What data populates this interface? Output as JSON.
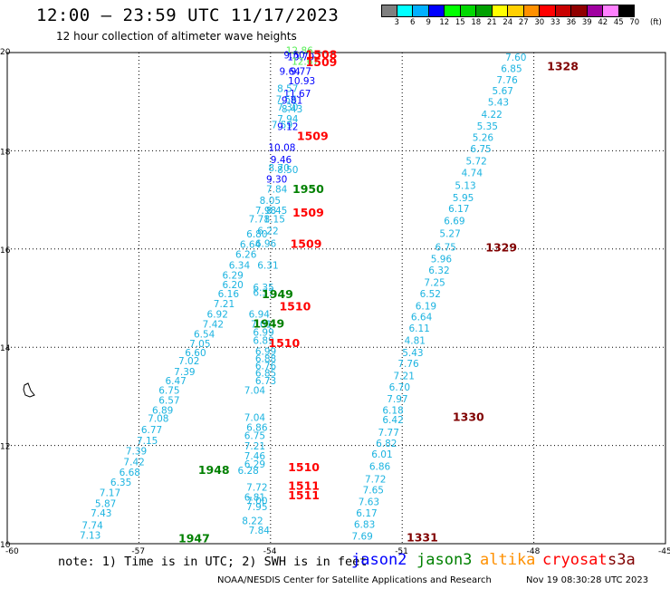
{
  "title": "12:00 – 23:59 UTC 11/17/2023",
  "subtitle": "12 hour collection of altimeter wave heights",
  "scale": {
    "unit": "(ft)",
    "bins": [
      {
        "label": "3",
        "color": "#7f7f7f"
      },
      {
        "label": "6",
        "color": "#00ffff"
      },
      {
        "label": "9",
        "color": "#00b0ff"
      },
      {
        "label": "12",
        "color": "#0000ff"
      },
      {
        "label": "15",
        "color": "#00ff00"
      },
      {
        "label": "18",
        "color": "#00d800"
      },
      {
        "label": "21",
        "color": "#00a000"
      },
      {
        "label": "24",
        "color": "#ffff00"
      },
      {
        "label": "27",
        "color": "#ffd000"
      },
      {
        "label": "30",
        "color": "#ff9000"
      },
      {
        "label": "33",
        "color": "#ff0000"
      },
      {
        "label": "36",
        "color": "#c80000"
      },
      {
        "label": "39",
        "color": "#900000"
      },
      {
        "label": "42",
        "color": "#a000a0"
      },
      {
        "label": "45",
        "color": "#ff80ff"
      },
      {
        "label": "70",
        "color": "#000000"
      }
    ]
  },
  "axes": {
    "x_ticks": [
      "-60",
      "-57",
      "-54",
      "-51",
      "-48",
      "-45"
    ],
    "y_ticks": [
      "20",
      "18",
      "16",
      "14",
      "12",
      "10"
    ]
  },
  "time_labels": [
    {
      "text": "1509",
      "color": "#ff0000",
      "lon": -53.2,
      "lat": 19.72
    },
    {
      "text": "1508",
      "color": "#ff0000",
      "lon": -53.2,
      "lat": 19.88
    },
    {
      "text": "1509",
      "color": "#ff0000",
      "lon": -53.4,
      "lat": 18.22
    },
    {
      "text": "1950",
      "color": "#008000",
      "lon": -53.5,
      "lat": 17.14
    },
    {
      "text": "1509",
      "color": "#ff0000",
      "lon": -53.5,
      "lat": 16.66
    },
    {
      "text": "1509",
      "color": "#ff0000",
      "lon": -53.55,
      "lat": 16.02
    },
    {
      "text": "1329",
      "color": "#800000",
      "lon": -49.1,
      "lat": 15.95
    },
    {
      "text": "1949",
      "color": "#008000",
      "lon": -54.2,
      "lat": 15.0
    },
    {
      "text": "1510",
      "color": "#ff0000",
      "lon": -53.8,
      "lat": 14.75
    },
    {
      "text": "1949",
      "color": "#008000",
      "lon": -54.4,
      "lat": 14.4
    },
    {
      "text": "1510",
      "color": "#ff0000",
      "lon": -54.05,
      "lat": 14.0
    },
    {
      "text": "1330",
      "color": "#800000",
      "lon": -49.85,
      "lat": 12.5
    },
    {
      "text": "1948",
      "color": "#008000",
      "lon": -55.65,
      "lat": 11.42
    },
    {
      "text": "1510",
      "color": "#ff0000",
      "lon": -53.6,
      "lat": 11.48
    },
    {
      "text": "1511",
      "color": "#ff0000",
      "lon": -53.6,
      "lat": 11.1
    },
    {
      "text": "1511",
      "color": "#ff0000",
      "lon": -53.6,
      "lat": 10.9
    },
    {
      "text": "1947",
      "color": "#008000",
      "lon": -56.1,
      "lat": 10.03
    },
    {
      "text": "1331",
      "color": "#800000",
      "lon": -50.9,
      "lat": 10.05
    },
    {
      "text": "1328",
      "color": "#800000",
      "lon": -47.7,
      "lat": 19.64
    }
  ],
  "tracks": [
    {
      "name": "",
      "values": [
        "12.86",
        "9.50",
        "10.79",
        "12.67",
        "9.64",
        "9.77",
        "10.93",
        "8.57",
        "11.67",
        "7.56",
        "9.81",
        "7.30",
        "8.43",
        "7.94",
        "7.59",
        "9.12",
        "10.08",
        "9.46",
        "8.70",
        "8.50",
        "9.30",
        "7.84",
        "8.05",
        "7.98",
        "8.45",
        "7.71",
        "8.15",
        "6.80",
        "6.22",
        "6.64",
        "6.96",
        "6.26"
      ],
      "points": [
        [
          -53.65,
          19.97
        ],
        [
          -53.7,
          19.88
        ],
        [
          -53.62,
          19.84
        ],
        [
          -53.52,
          19.75
        ],
        [
          -53.8,
          19.55
        ],
        [
          -53.55,
          19.55
        ],
        [
          -53.6,
          19.35
        ],
        [
          -53.85,
          19.2
        ],
        [
          -53.7,
          19.1
        ],
        [
          -53.88,
          18.98
        ],
        [
          -53.75,
          18.96
        ],
        [
          -53.85,
          18.82
        ],
        [
          -53.75,
          18.78
        ],
        [
          -53.85,
          18.58
        ],
        [
          -53.98,
          18.46
        ],
        [
          -53.85,
          18.42
        ],
        [
          -54.05,
          18.0
        ],
        [
          -54.0,
          17.75
        ],
        [
          -54.05,
          17.58
        ],
        [
          -53.85,
          17.55
        ],
        [
          -54.1,
          17.35
        ],
        [
          -54.1,
          17.15
        ],
        [
          -54.25,
          16.92
        ],
        [
          -54.35,
          16.72
        ],
        [
          -54.1,
          16.72
        ],
        [
          -54.5,
          16.54
        ],
        [
          -54.15,
          16.54
        ],
        [
          -54.55,
          16.24
        ],
        [
          -54.3,
          16.3
        ],
        [
          -54.7,
          16.02
        ],
        [
          -54.35,
          16.04
        ],
        [
          -54.8,
          15.82
        ]
      ]
    },
    {
      "name": "",
      "values": [
        "6.34",
        "6.31",
        "6.29",
        "6.20",
        "6.35",
        "6.16",
        "6.37",
        "7.21",
        "6.92",
        "6.94",
        "7.42",
        "7.01",
        "6.54",
        "6.99",
        "7.05",
        "6.89",
        "6.60",
        "6.99",
        "7.02",
        "6.88",
        "6.76",
        "7.39",
        "6.85",
        "6.47",
        "6.73",
        "6.75",
        "7.04",
        "6.57",
        "6.89",
        "7.04",
        "7.08",
        "6.86",
        "6.77",
        "6.75",
        "7.15",
        "7.21",
        "7.39",
        "7.46",
        "7.42",
        "6.29",
        "6.28",
        "6.68",
        "6.35",
        "7.72",
        "7.17",
        "6.81",
        "5.87",
        "7.00",
        "7.95",
        "7.43",
        "8.22",
        "7.74",
        "7.84",
        "7.13"
      ],
      "points": [
        [
          -54.95,
          15.6
        ],
        [
          -54.3,
          15.6
        ],
        [
          -55.1,
          15.4
        ],
        [
          -55.1,
          15.2
        ],
        [
          -54.4,
          15.15
        ],
        [
          -55.2,
          15.02
        ],
        [
          -54.4,
          15.05
        ],
        [
          -55.3,
          14.82
        ],
        [
          -55.45,
          14.6
        ],
        [
          -54.5,
          14.6
        ],
        [
          -55.55,
          14.4
        ],
        [
          -54.45,
          14.4
        ],
        [
          -55.75,
          14.2
        ],
        [
          -54.4,
          14.23
        ],
        [
          -55.85,
          14.0
        ],
        [
          -54.4,
          14.07
        ],
        [
          -55.95,
          13.82
        ],
        [
          -54.35,
          13.85
        ],
        [
          -56.1,
          13.65
        ],
        [
          -54.35,
          13.7
        ],
        [
          -54.35,
          13.55
        ],
        [
          -56.2,
          13.43
        ],
        [
          -54.35,
          13.4
        ],
        [
          -56.4,
          13.25
        ],
        [
          -54.35,
          13.25
        ],
        [
          -56.55,
          13.05
        ],
        [
          -54.6,
          13.05
        ],
        [
          -56.55,
          12.85
        ],
        [
          -56.7,
          12.65
        ],
        [
          -54.6,
          12.5
        ],
        [
          -56.8,
          12.48
        ],
        [
          -54.55,
          12.3
        ],
        [
          -56.95,
          12.25
        ],
        [
          -54.6,
          12.13
        ],
        [
          -57.05,
          12.03
        ],
        [
          -54.6,
          11.92
        ],
        [
          -57.3,
          11.82
        ],
        [
          -54.6,
          11.72
        ],
        [
          -57.35,
          11.6
        ],
        [
          -54.6,
          11.55
        ],
        [
          -54.75,
          11.42
        ],
        [
          -57.45,
          11.38
        ],
        [
          -57.65,
          11.18
        ],
        [
          -54.55,
          11.08
        ],
        [
          -57.9,
          10.97
        ],
        [
          -54.6,
          10.88
        ],
        [
          -58.0,
          10.75
        ],
        [
          -54.55,
          10.8
        ],
        [
          -54.55,
          10.68
        ],
        [
          -58.1,
          10.55
        ],
        [
          -54.65,
          10.4
        ],
        [
          -58.3,
          10.3
        ],
        [
          -54.5,
          10.2
        ],
        [
          -58.35,
          10.1
        ]
      ]
    },
    {
      "name": "",
      "values": [
        "7.60",
        "6.85",
        "7.76",
        "5.67",
        "5.43",
        "4.22",
        "5.35",
        "5.26",
        "6.75",
        "5.72",
        "4.74",
        "5.13",
        "5.95",
        "6.17",
        "6.69",
        "5.27",
        "6.75",
        "5.96",
        "6.32",
        "7.25",
        "6.52",
        "6.19",
        "6.64",
        "6.11",
        "4.81",
        "5.43",
        "7.76",
        "7.21",
        "6.70",
        "7.97",
        "6.18",
        "6.42",
        "7.77",
        "6.82",
        "6.01",
        "6.86",
        "7.72",
        "7.65",
        "7.63",
        "6.17",
        "6.83",
        "7.69"
      ],
      "points": [
        [
          -48.65,
          19.83
        ],
        [
          -48.75,
          19.6
        ],
        [
          -48.85,
          19.37
        ],
        [
          -48.95,
          19.15
        ],
        [
          -49.05,
          18.92
        ],
        [
          -49.2,
          18.67
        ],
        [
          -49.3,
          18.43
        ],
        [
          -49.4,
          18.2
        ],
        [
          -49.45,
          17.97
        ],
        [
          -49.55,
          17.72
        ],
        [
          -49.65,
          17.48
        ],
        [
          -49.8,
          17.22
        ],
        [
          -49.85,
          16.97
        ],
        [
          -49.95,
          16.75
        ],
        [
          -50.05,
          16.5
        ],
        [
          -50.15,
          16.25
        ],
        [
          -50.25,
          15.97
        ],
        [
          -50.35,
          15.73
        ],
        [
          -50.4,
          15.5
        ],
        [
          -50.5,
          15.25
        ],
        [
          -50.6,
          15.02
        ],
        [
          -50.7,
          14.77
        ],
        [
          -50.8,
          14.55
        ],
        [
          -50.85,
          14.32
        ],
        [
          -50.95,
          14.07
        ],
        [
          -51.0,
          13.82
        ],
        [
          -51.1,
          13.6
        ],
        [
          -51.2,
          13.35
        ],
        [
          -51.3,
          13.12
        ],
        [
          -51.35,
          12.88
        ],
        [
          -51.45,
          12.65
        ],
        [
          -51.45,
          12.45
        ],
        [
          -51.55,
          12.2
        ],
        [
          -51.6,
          11.97
        ],
        [
          -51.7,
          11.75
        ],
        [
          -51.75,
          11.5
        ],
        [
          -51.85,
          11.25
        ],
        [
          -51.9,
          11.02
        ],
        [
          -52.0,
          10.78
        ],
        [
          -52.05,
          10.55
        ],
        [
          -52.1,
          10.32
        ],
        [
          -52.15,
          10.08
        ]
      ]
    }
  ],
  "note": "note: 1) Time is in UTC; 2) SWH is in feet",
  "satellites": [
    {
      "name": "jason2",
      "color": "#0000ff"
    },
    {
      "name": "jason3",
      "color": "#008000"
    },
    {
      "name": "altika",
      "color": "#ff9000"
    },
    {
      "name": "cryosat",
      "color": "#ff0000"
    },
    {
      "name": "s3a",
      "color": "#800000"
    }
  ],
  "credit": "NOAA/NESDIS Center for Satellite Applications and Research",
  "timestamp": "Nov 19 08:30:28 UTC 2023"
}
